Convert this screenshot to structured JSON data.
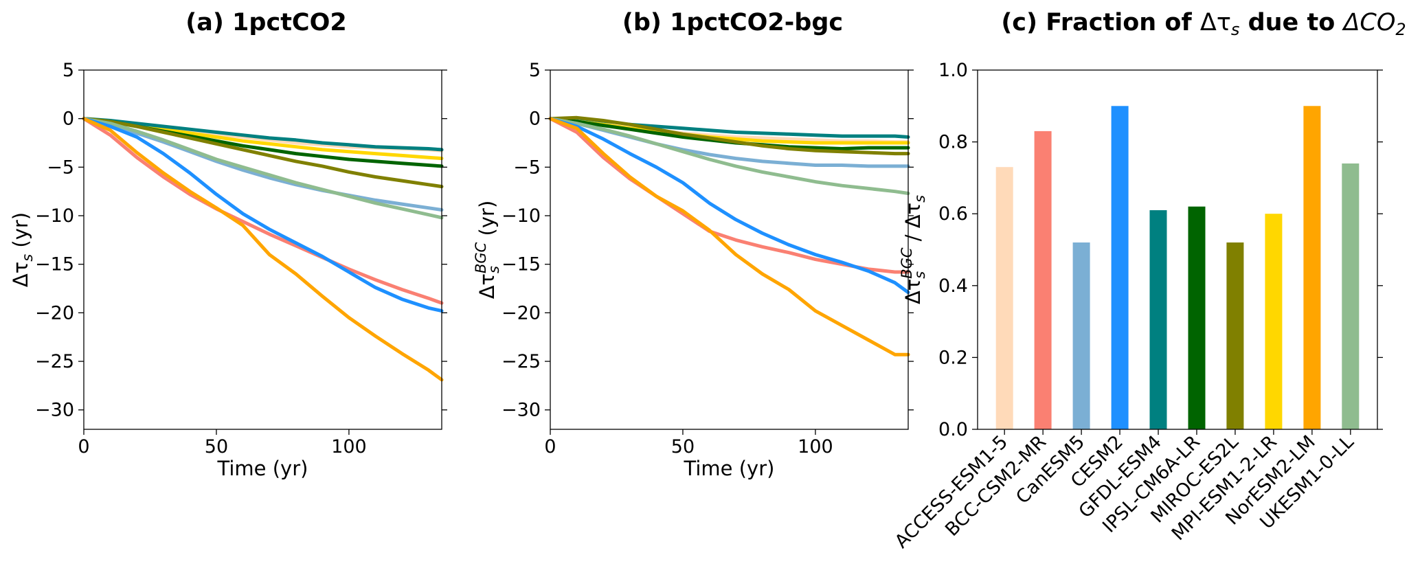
{
  "models": [
    "ACCESS-ESM1-5",
    "BCC-CSM2-MR",
    "CanESM5",
    "CESM2",
    "GFDL-ESM4",
    "IPSL-CM6A-LR",
    "MIROC-ES2L",
    "MPI-ESM1-2-LR",
    "NorESM2-LM",
    "UKESM1-0-LL"
  ],
  "colors": {
    "ACCESS-ESM1-5": "#ffdab9",
    "BCC-CSM2-MR": "#fa8072",
    "CanESM5": "#7bafd4",
    "CESM2": "#1e90ff",
    "GFDL-ESM4": "#008080",
    "IPSL-CM6A-LR": "#006400",
    "MIROC-ES2L": "#808000",
    "MPI-ESM1-2-LR": "#ffd700",
    "NorESM2-LM": "#ffa500",
    "UKESM1-0-LL": "#8fbc8f"
  },
  "chart_data": [
    {
      "type": "line",
      "title": "(a) 1pctCO2",
      "xlabel": "Time (yr)",
      "ylabel": "Δτ",
      "ylabel_sub": "s",
      "ylabel_tail": " (yr)",
      "xlim": [
        0,
        135
      ],
      "ylim": [
        -32,
        5
      ],
      "xticks": [
        0,
        50,
        100
      ],
      "yticks": [
        5,
        0,
        -5,
        -10,
        -15,
        -20,
        -25,
        -30
      ],
      "x": [
        0,
        10,
        20,
        30,
        40,
        50,
        60,
        70,
        80,
        90,
        100,
        110,
        120,
        130,
        135
      ],
      "series": [
        {
          "model": "ACCESS-ESM1-5",
          "values": [
            0,
            -0.3,
            -0.6,
            -0.9,
            -1.3,
            -1.6,
            -1.9,
            -2.2,
            -2.5,
            -2.7,
            -2.9,
            -3.0,
            -3.1,
            -3.2,
            -3.3
          ]
        },
        {
          "model": "MPI-ESM1-2-LR",
          "values": [
            0,
            -0.3,
            -0.7,
            -1.1,
            -1.5,
            -1.9,
            -2.3,
            -2.6,
            -2.9,
            -3.2,
            -3.4,
            -3.6,
            -3.8,
            -4.0,
            -4.1
          ]
        },
        {
          "model": "GFDL-ESM4",
          "values": [
            0,
            -0.2,
            -0.5,
            -0.8,
            -1.1,
            -1.4,
            -1.7,
            -2.0,
            -2.2,
            -2.5,
            -2.7,
            -2.9,
            -3.0,
            -3.1,
            -3.2
          ]
        },
        {
          "model": "IPSL-CM6A-LR",
          "values": [
            0,
            -0.3,
            -0.8,
            -1.3,
            -1.8,
            -2.3,
            -2.8,
            -3.2,
            -3.6,
            -3.9,
            -4.2,
            -4.4,
            -4.6,
            -4.8,
            -4.9
          ]
        },
        {
          "model": "MIROC-ES2L",
          "values": [
            0,
            -0.3,
            -0.8,
            -1.4,
            -2.0,
            -2.6,
            -3.2,
            -3.8,
            -4.4,
            -4.9,
            -5.5,
            -6.0,
            -6.4,
            -6.8,
            -7.0
          ]
        },
        {
          "model": "CanESM5",
          "values": [
            0,
            -0.6,
            -1.5,
            -2.4,
            -3.4,
            -4.4,
            -5.3,
            -6.1,
            -6.8,
            -7.4,
            -7.9,
            -8.4,
            -8.8,
            -9.2,
            -9.4
          ]
        },
        {
          "model": "UKESM1-0-LL",
          "values": [
            0,
            -0.5,
            -1.3,
            -2.2,
            -3.2,
            -4.2,
            -5.0,
            -5.8,
            -6.6,
            -7.3,
            -8.0,
            -8.7,
            -9.3,
            -9.9,
            -10.2
          ]
        },
        {
          "model": "BCC-CSM2-MR",
          "values": [
            0,
            -1.7,
            -4.0,
            -6.0,
            -7.8,
            -9.3,
            -10.6,
            -11.9,
            -13.1,
            -14.3,
            -15.5,
            -16.6,
            -17.6,
            -18.5,
            -19.0
          ]
        },
        {
          "model": "CESM2",
          "values": [
            0,
            -0.8,
            -1.9,
            -3.6,
            -5.6,
            -7.8,
            -9.8,
            -11.4,
            -12.8,
            -14.2,
            -15.8,
            -17.4,
            -18.6,
            -19.5,
            -19.8
          ]
        },
        {
          "model": "NorESM2-LM",
          "values": [
            0,
            -1.2,
            -3.5,
            -5.6,
            -7.5,
            -9.2,
            -11.0,
            -14.0,
            -16.0,
            -18.3,
            -20.5,
            -22.4,
            -24.2,
            -25.9,
            -26.9
          ]
        }
      ]
    },
    {
      "type": "line",
      "title": "(b) 1pctCO2-bgc",
      "xlabel": "Time (yr)",
      "ylabel": "Δτ",
      "ylabel_sub": "s",
      "ylabel_sup": "BGC",
      "ylabel_tail": " (yr)",
      "xlim": [
        0,
        135
      ],
      "ylim": [
        -32,
        5
      ],
      "xticks": [
        0,
        50,
        100
      ],
      "yticks": [
        5,
        0,
        -5,
        -10,
        -15,
        -20,
        -25,
        -30
      ],
      "x": [
        0,
        10,
        20,
        30,
        40,
        50,
        60,
        70,
        80,
        90,
        100,
        110,
        120,
        130,
        135
      ],
      "series": [
        {
          "model": "GFDL-ESM4",
          "values": [
            0,
            -0.2,
            -0.4,
            -0.6,
            -0.8,
            -1.0,
            -1.2,
            -1.4,
            -1.5,
            -1.6,
            -1.7,
            -1.8,
            -1.8,
            -1.8,
            -1.9
          ]
        },
        {
          "model": "ACCESS-ESM1-5",
          "values": [
            0,
            -0.3,
            -0.6,
            -0.9,
            -1.2,
            -1.5,
            -1.7,
            -1.9,
            -2.0,
            -2.1,
            -2.2,
            -2.3,
            -2.3,
            -2.4,
            -2.4
          ]
        },
        {
          "model": "MPI-ESM1-2-LR",
          "values": [
            0,
            -0.3,
            -0.6,
            -1.0,
            -1.3,
            -1.6,
            -1.9,
            -2.1,
            -2.3,
            -2.4,
            -2.5,
            -2.5,
            -2.5,
            -2.5,
            -2.5
          ]
        },
        {
          "model": "IPSL-CM6A-LR",
          "values": [
            0,
            -0.3,
            -0.7,
            -1.1,
            -1.5,
            -1.9,
            -2.2,
            -2.5,
            -2.7,
            -2.9,
            -3.0,
            -3.1,
            -3.0,
            -3.0,
            -3.0
          ]
        },
        {
          "model": "MIROC-ES2L",
          "values": [
            0,
            0.1,
            -0.2,
            -0.6,
            -1.1,
            -1.6,
            -2.0,
            -2.4,
            -2.8,
            -3.1,
            -3.3,
            -3.4,
            -3.5,
            -3.6,
            -3.6
          ]
        },
        {
          "model": "CanESM5",
          "values": [
            0,
            -0.5,
            -1.2,
            -1.9,
            -2.6,
            -3.2,
            -3.7,
            -4.1,
            -4.4,
            -4.6,
            -4.8,
            -4.8,
            -4.9,
            -4.9,
            -4.9
          ]
        },
        {
          "model": "UKESM1-0-LL",
          "values": [
            0,
            -0.5,
            -1.1,
            -1.8,
            -2.6,
            -3.4,
            -4.2,
            -4.9,
            -5.5,
            -6.0,
            -6.5,
            -6.9,
            -7.2,
            -7.5,
            -7.7
          ]
        },
        {
          "model": "BCC-CSM2-MR",
          "values": [
            0,
            -1.4,
            -4.0,
            -6.2,
            -8.0,
            -9.8,
            -11.6,
            -12.5,
            -13.2,
            -13.8,
            -14.5,
            -15.0,
            -15.5,
            -15.8,
            -15.8
          ]
        },
        {
          "model": "CESM2",
          "values": [
            0,
            -0.8,
            -2.1,
            -3.6,
            -5.0,
            -6.6,
            -8.7,
            -10.4,
            -11.8,
            -13.0,
            -14.0,
            -14.8,
            -15.7,
            -16.9,
            -17.9
          ]
        },
        {
          "model": "NorESM2-LM",
          "values": [
            0,
            -1.0,
            -3.6,
            -6.0,
            -8.0,
            -9.5,
            -11.5,
            -14.0,
            -16.0,
            -17.6,
            -19.8,
            -21.3,
            -22.8,
            -24.3,
            -24.3
          ]
        }
      ]
    },
    {
      "type": "bar",
      "title_parts": [
        "(c) Fraction of ",
        "Δτ",
        "s",
        " due to ",
        "ΔCO",
        "2"
      ],
      "ylabel": "Δτ",
      "ylabel_sub": "s",
      "ylabel_sup": "BGC",
      "ylabel_tail": " / Δτ",
      "ylabel_sub2": "s",
      "ylim": [
        0,
        1.0
      ],
      "yticks": [
        0.0,
        0.2,
        0.4,
        0.6,
        0.8,
        1.0
      ],
      "ytick_labels": [
        "0.0",
        "0.2",
        "0.4",
        "0.6",
        "0.8",
        "1.0"
      ],
      "categories": [
        "ACCESS-ESM1-5",
        "BCC-CSM2-MR",
        "CanESM5",
        "CESM2",
        "GFDL-ESM4",
        "IPSL-CM6A-LR",
        "MIROC-ES2L",
        "MPI-ESM1-2-LR",
        "NorESM2-LM",
        "UKESM1-0-LL"
      ],
      "values": [
        0.73,
        0.83,
        0.52,
        0.9,
        0.61,
        0.62,
        0.52,
        0.6,
        0.9,
        0.74
      ]
    }
  ]
}
